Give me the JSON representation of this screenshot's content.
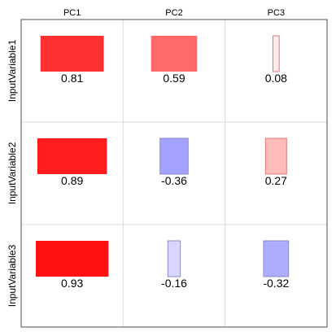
{
  "chart_data": {
    "type": "heatmap",
    "columns": [
      "PC1",
      "PC2",
      "PC3"
    ],
    "rows": [
      "InputVariable1",
      "InputVariable2",
      "InputVariable3"
    ],
    "values": [
      [
        0.81,
        0.59,
        0.08
      ],
      [
        0.89,
        -0.36,
        0.27
      ],
      [
        0.93,
        -0.16,
        -0.32
      ]
    ],
    "value_labels": [
      [
        "0.81",
        "0.59",
        "0.08"
      ],
      [
        "0.89",
        "-0.36",
        "0.27"
      ],
      [
        "0.93",
        "-0.16",
        "-0.32"
      ]
    ],
    "positive_color": "#ff0000",
    "negative_color": "#0000ff",
    "grid": true
  }
}
